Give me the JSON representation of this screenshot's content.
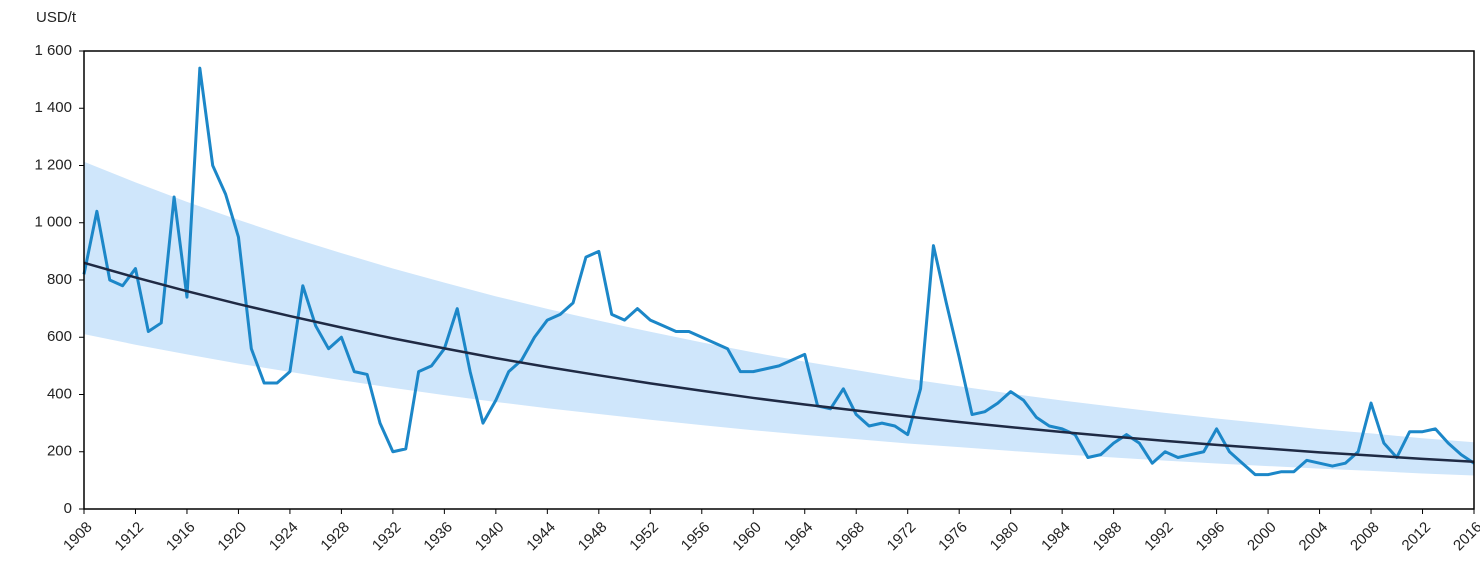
{
  "chart_data": {
    "type": "line",
    "y_axis_label": "USD/t",
    "xlim": [
      1908,
      2016
    ],
    "xticks": [
      1908,
      1912,
      1916,
      1920,
      1924,
      1928,
      1932,
      1936,
      1940,
      1944,
      1948,
      1952,
      1956,
      1960,
      1964,
      1968,
      1972,
      1976,
      1980,
      1984,
      1988,
      1992,
      1996,
      2000,
      2004,
      2008,
      2012,
      2016
    ],
    "ylim": [
      0,
      1600
    ],
    "yticks": [
      0,
      200,
      400,
      600,
      800,
      {
        "value": 1000,
        "label": "1 000"
      },
      {
        "value": 1200,
        "label": "1 200"
      },
      {
        "value": 1400,
        "label": "1 400"
      },
      {
        "value": 1600,
        "label": "1 600"
      }
    ],
    "x": [
      1908,
      1909,
      1910,
      1911,
      1912,
      1913,
      1914,
      1915,
      1916,
      1917,
      1918,
      1919,
      1920,
      1921,
      1922,
      1923,
      1924,
      1925,
      1926,
      1927,
      1928,
      1929,
      1930,
      1931,
      1932,
      1933,
      1934,
      1935,
      1936,
      1937,
      1938,
      1939,
      1940,
      1941,
      1942,
      1943,
      1944,
      1945,
      1946,
      1947,
      1948,
      1949,
      1950,
      1951,
      1952,
      1953,
      1954,
      1955,
      1956,
      1957,
      1958,
      1959,
      1960,
      1961,
      1962,
      1963,
      1964,
      1965,
      1966,
      1967,
      1968,
      1969,
      1970,
      1971,
      1972,
      1973,
      1974,
      1975,
      1976,
      1977,
      1978,
      1979,
      1980,
      1981,
      1982,
      1983,
      1984,
      1985,
      1986,
      1987,
      1988,
      1989,
      1990,
      1991,
      1992,
      1993,
      1994,
      1995,
      1996,
      1997,
      1998,
      1999,
      2000,
      2001,
      2002,
      2003,
      2004,
      2005,
      2006,
      2007,
      2008,
      2009,
      2010,
      2011,
      2012,
      2013,
      2014,
      2015,
      2016
    ],
    "series": [
      {
        "color": "#1c87c8",
        "values": [
          820,
          1040,
          800,
          780,
          840,
          620,
          650,
          1090,
          740,
          1540,
          1200,
          1100,
          950,
          560,
          440,
          440,
          480,
          780,
          640,
          560,
          600,
          480,
          470,
          300,
          200,
          210,
          480,
          500,
          560,
          700,
          480,
          300,
          380,
          480,
          520,
          600,
          660,
          680,
          720,
          880,
          900,
          680,
          660,
          700,
          660,
          640,
          620,
          620,
          600,
          580,
          560,
          480,
          480,
          490,
          500,
          520,
          540,
          360,
          350,
          420,
          330,
          290,
          300,
          290,
          260,
          420,
          920,
          720,
          530,
          330,
          340,
          370,
          410,
          380,
          320,
          290,
          280,
          260,
          180,
          190,
          230,
          260,
          230,
          160,
          200,
          180,
          190,
          200,
          280,
          200,
          160,
          120,
          120,
          130,
          130,
          170,
          160,
          150,
          160,
          200,
          370,
          230,
          180,
          270,
          270,
          280,
          230,
          190,
          160
        ]
      }
    ],
    "trend": {
      "color": "#1f2a44",
      "band_color": "#cfe6fb",
      "x": [
        1908,
        1912,
        1916,
        1920,
        1924,
        1928,
        1932,
        1936,
        1940,
        1944,
        1948,
        1952,
        1956,
        1960,
        1964,
        1968,
        1972,
        1976,
        1980,
        1984,
        1988,
        1992,
        1996,
        2000,
        2004,
        2008,
        2012,
        2016
      ],
      "values": [
        860,
        809,
        761,
        716,
        674,
        634,
        596,
        561,
        527,
        496,
        467,
        439,
        413,
        388,
        365,
        344,
        323,
        304,
        286,
        269,
        253,
        238,
        224,
        211,
        198,
        187,
        175,
        165
      ],
      "upper": [
        1213,
        1141,
        1073,
        1010,
        950,
        894,
        840,
        791,
        743,
        699,
        658,
        619,
        582,
        547,
        515,
        485,
        455,
        429,
        403,
        379,
        357,
        336,
        316,
        298,
        279,
        264,
        247,
        233
      ],
      "lower": [
        611,
        574,
        540,
        508,
        479,
        450,
        423,
        398,
        374,
        352,
        332,
        312,
        293,
        275,
        259,
        244,
        229,
        216,
        203,
        191,
        180,
        169,
        159,
        150,
        141,
        133,
        124,
        117
      ]
    }
  }
}
